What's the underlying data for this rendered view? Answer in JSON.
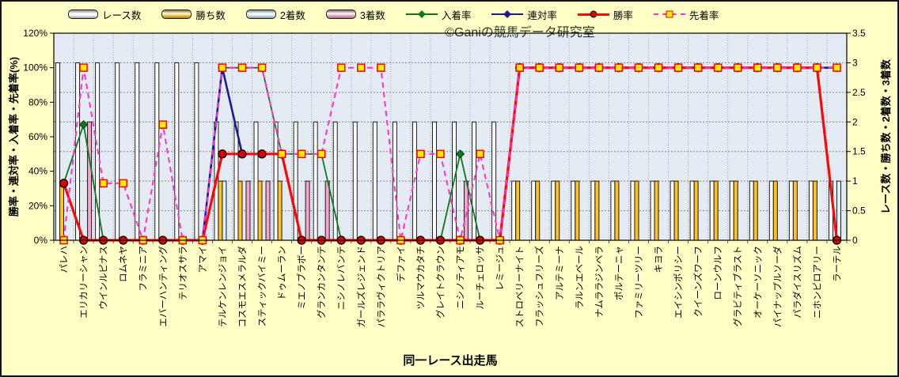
{
  "watermark": "©Ganiの競馬データ研究室",
  "chart_data": {
    "type": "bar",
    "subtype": "bar+line combo, dual axis",
    "x_axis": {
      "title": "同一レース出走馬"
    },
    "left_axis": {
      "title": "勝率・連対率・入着率・先着率(%)",
      "min": 0,
      "max": 120,
      "tick_step": 20,
      "tick_labels": [
        "0%",
        "20%",
        "40%",
        "60%",
        "80%",
        "100%",
        "120%"
      ]
    },
    "right_axis": {
      "title": "レース数・勝ち数・2着数・3着数",
      "min": 0,
      "max": 3.5,
      "tick_step": 0.5,
      "tick_labels": [
        "0",
        "0.5",
        "1",
        "1.5",
        "2",
        "2.5",
        "3",
        "3.5"
      ]
    },
    "background": {
      "page": "#FFFFC6",
      "plot": "#CBD7E8"
    },
    "grid": {
      "horizontal": true,
      "vertical": true
    },
    "legend_position": "top",
    "categories": [
      "パレハ",
      "エリカリーシャン",
      "ウインルピナス",
      "ロムネヤ",
      "フラミニア",
      "エバーハンティング",
      "テリオスサラ",
      "アマイ",
      "テルケンレンジョイ",
      "コスモエスメラルダ",
      "スティックバイミー",
      "ドゥムーラン",
      "ミエノブラボー",
      "グランカンタンテ",
      "ニシノレバンテ",
      "ガールズレジェンド",
      "パララヴィクトリア",
      "デファイ",
      "ツルマウカタチ",
      "グレイトクラウン",
      "ニシノティアモ",
      "ルーチェロッサ",
      "レミージュ",
      "ストロベリーナイト",
      "フラッシュフリーズ",
      "アルテミーナ",
      "ラルンエベール",
      "ナムララジンベラ",
      "ポルテーニャ",
      "ファミリーツリー",
      "キヨラ",
      "エイシンポリシー",
      "クイーンズワーフ",
      "ローンウルフ",
      "グラビティブラスト",
      "オーケーソニック",
      "パイナップルソーダ",
      "パラダイスリズム",
      "ニホンピロアリー",
      "ラーテル"
    ],
    "bar_series": [
      {
        "name": "レース数",
        "color": "#FFFFFF",
        "edge": "#1c1c1c",
        "values": [
          3,
          3,
          3,
          3,
          3,
          3,
          3,
          3,
          2,
          2,
          2,
          2,
          2,
          2,
          2,
          2,
          2,
          2,
          2,
          2,
          2,
          2,
          2,
          1,
          1,
          1,
          1,
          1,
          1,
          1,
          1,
          1,
          1,
          1,
          1,
          1,
          1,
          1,
          1,
          1
        ]
      },
      {
        "name": "勝ち数",
        "color": "#FFC21E",
        "edge": "#1c1c1c",
        "values": [
          1,
          0,
          0,
          0,
          0,
          0,
          0,
          0,
          1,
          1,
          1,
          1,
          0,
          0,
          0,
          0,
          0,
          0,
          0,
          0,
          0,
          0,
          0,
          1,
          1,
          1,
          1,
          1,
          1,
          1,
          1,
          1,
          1,
          1,
          1,
          1,
          1,
          1,
          1,
          0
        ]
      },
      {
        "name": "2着数",
        "color": "#D6F2FA",
        "edge": "#1c1c1c",
        "values": [
          0,
          0,
          0,
          0,
          0,
          0,
          0,
          0,
          1,
          0,
          0,
          0,
          0,
          0,
          0,
          0,
          0,
          0,
          0,
          0,
          0,
          0,
          0,
          0,
          0,
          0,
          0,
          0,
          0,
          0,
          0,
          0,
          0,
          0,
          0,
          0,
          0,
          0,
          0,
          1
        ]
      },
      {
        "name": "3着数",
        "color": "#F7A3CB",
        "edge": "#1c1c1c",
        "values": [
          0,
          2,
          0,
          0,
          0,
          0,
          0,
          0,
          0,
          1,
          1,
          0,
          1,
          1,
          0,
          0,
          0,
          0,
          0,
          0,
          1,
          0,
          0,
          0,
          0,
          0,
          0,
          0,
          0,
          0,
          0,
          0,
          0,
          0,
          0,
          0,
          0,
          0,
          0,
          0
        ]
      }
    ],
    "line_series": [
      {
        "name": "入着率",
        "color": "#0B7A1F",
        "width": 1.8,
        "dashed": false,
        "marker": "diamond",
        "marker_color": "#0B7A1F",
        "marker_edge": "#053d10",
        "values": [
          33,
          67,
          0,
          0,
          0,
          0,
          0,
          0,
          100,
          100,
          100,
          50,
          50,
          50,
          0,
          0,
          0,
          0,
          0,
          0,
          50,
          0,
          0,
          100,
          100,
          100,
          100,
          100,
          100,
          100,
          100,
          100,
          100,
          100,
          100,
          100,
          100,
          100,
          100,
          100
        ]
      },
      {
        "name": "連対率",
        "color": "#1B1B96",
        "width": 2.6,
        "dashed": false,
        "marker": "diamond",
        "marker_color": "#1B1B96",
        "marker_edge": "#0a0a45",
        "values": [
          33,
          0,
          0,
          0,
          0,
          0,
          0,
          0,
          100,
          50,
          50,
          50,
          0,
          0,
          0,
          0,
          0,
          0,
          0,
          0,
          0,
          0,
          0,
          100,
          100,
          100,
          100,
          100,
          100,
          100,
          100,
          100,
          100,
          100,
          100,
          100,
          100,
          100,
          100,
          100
        ]
      },
      {
        "name": "勝率",
        "color": "#FF0606",
        "width": 3.2,
        "dashed": false,
        "marker": "circle",
        "marker_color": "#DD0000",
        "marker_edge": "#000000",
        "values": [
          33,
          0,
          0,
          0,
          0,
          0,
          0,
          0,
          50,
          50,
          50,
          50,
          0,
          0,
          0,
          0,
          0,
          0,
          0,
          0,
          0,
          0,
          0,
          100,
          100,
          100,
          100,
          100,
          100,
          100,
          100,
          100,
          100,
          100,
          100,
          100,
          100,
          100,
          100,
          0
        ]
      },
      {
        "name": "先着率",
        "color": "#FF2FD2",
        "width": 2,
        "dashed": true,
        "marker": "square",
        "marker_color": "#FFEC00",
        "marker_edge": "#FF0000",
        "values": [
          0,
          100,
          33,
          33,
          0,
          67,
          0,
          0,
          100,
          100,
          100,
          50,
          50,
          50,
          100,
          100,
          100,
          0,
          50,
          50,
          0,
          50,
          0,
          100,
          100,
          100,
          100,
          100,
          100,
          100,
          100,
          100,
          100,
          100,
          100,
          100,
          100,
          100,
          100,
          100
        ]
      }
    ]
  }
}
